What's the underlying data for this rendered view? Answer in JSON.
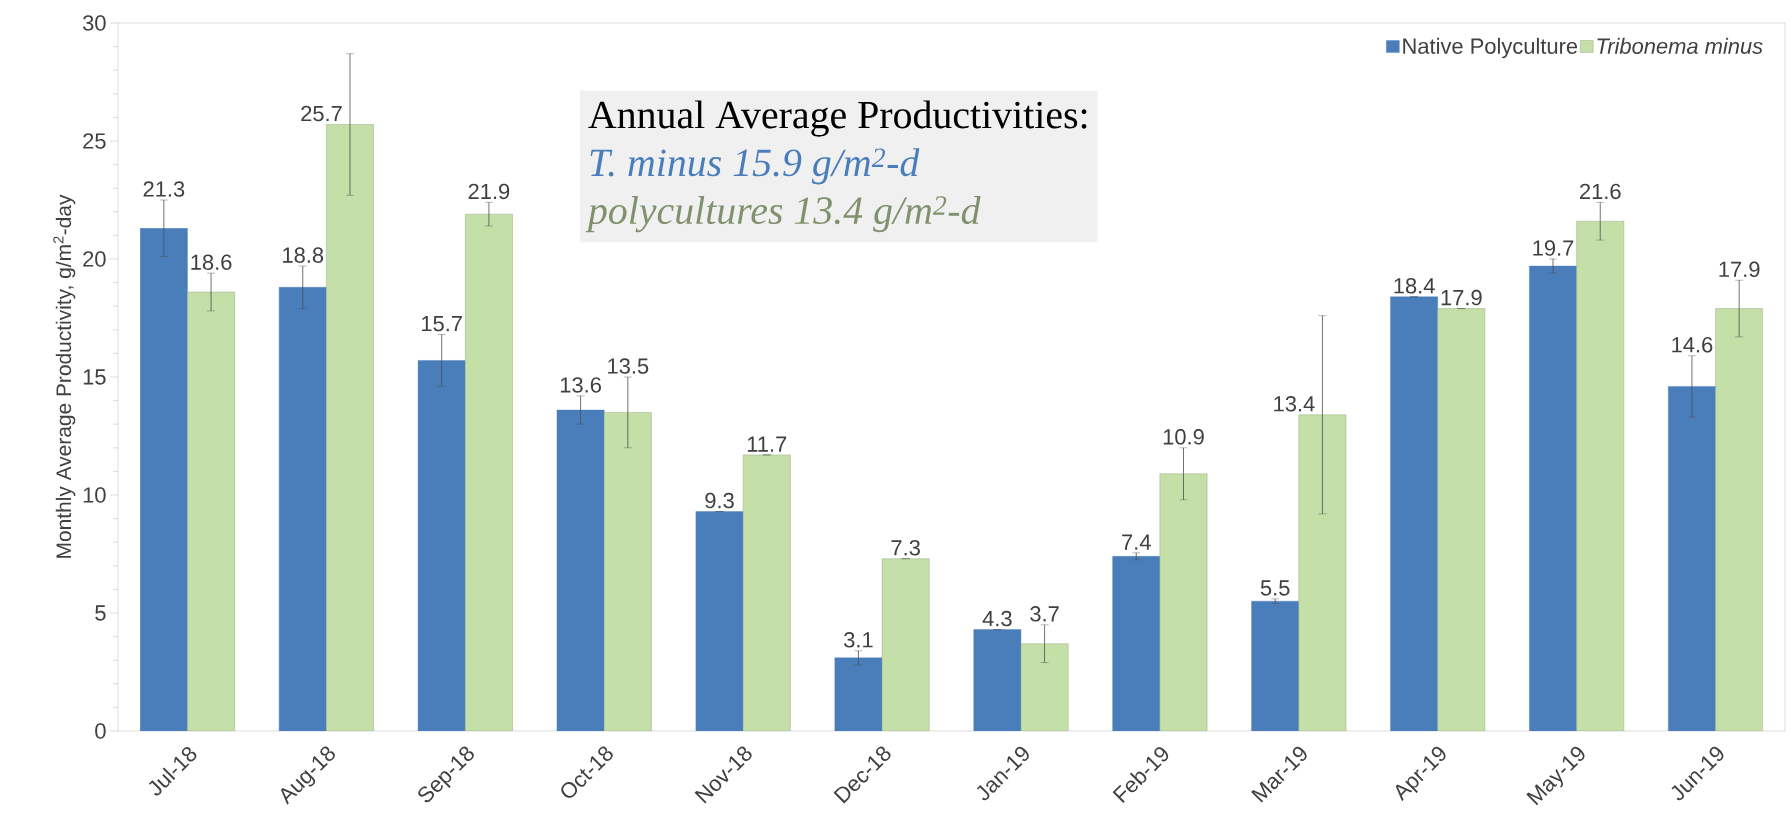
{
  "chart_data": {
    "type": "bar",
    "ylabel": "Monthly Average Productivity, g/m$^{2}$-day",
    "categories": [
      "Jul-18",
      "Aug-18",
      "Sep-18",
      "Oct-18",
      "Nov-18",
      "Dec-18",
      "Jan-19",
      "Feb-19",
      "Mar-19",
      "Apr-19",
      "May-19",
      "Jun-19"
    ],
    "series": [
      {
        "name": "Native Polyculture",
        "color": "#4a7ebb",
        "values": [
          21.3,
          18.8,
          15.7,
          13.6,
          9.3,
          3.1,
          4.3,
          7.4,
          5.5,
          18.4,
          19.7,
          14.6
        ],
        "errors": [
          1.2,
          0.9,
          1.1,
          0.6,
          null,
          0.3,
          null,
          0.15,
          0.1,
          null,
          0.3,
          1.3
        ]
      },
      {
        "name": "Tribonema minus",
        "color": "#c5dfa8",
        "values": [
          18.6,
          25.7,
          21.9,
          13.5,
          11.7,
          7.3,
          3.7,
          10.9,
          13.4,
          17.9,
          21.6,
          17.9
        ],
        "errors": [
          0.8,
          3.0,
          0.5,
          1.5,
          null,
          null,
          0.8,
          1.1,
          4.2,
          null,
          0.8,
          1.2
        ]
      }
    ],
    "annotations": [
      "Annual Average Productivities:",
      "T. minus 15.9 g/m$^{2}$-d",
      "polycultures 13.4 g/m$^{2}$-d"
    ],
    "ylim": [
      0,
      30
    ],
    "yticks": [
      0,
      5,
      10,
      15,
      20,
      25,
      30
    ],
    "data_labels": true,
    "grid": false,
    "legend": "top right"
  }
}
